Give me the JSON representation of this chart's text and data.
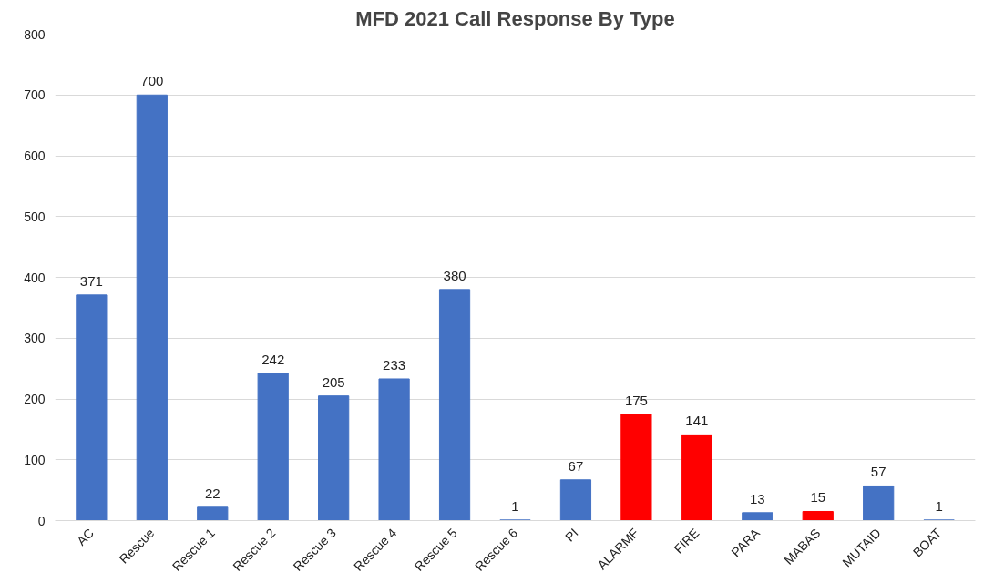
{
  "chart_data": {
    "type": "bar",
    "title": "MFD 2021 Call Response By Type",
    "categories": [
      "AC",
      "Rescue",
      "Rescue 1",
      "Rescue 2",
      "Rescue 3",
      "Rescue 4",
      "Rescue 5",
      "Rescue 6",
      "PI",
      "ALARMF",
      "FIRE",
      "PARA",
      "MABAS",
      "MUTAID",
      "BOAT"
    ],
    "values": [
      371,
      700,
      22,
      242,
      205,
      233,
      380,
      1,
      67,
      175,
      141,
      13,
      15,
      57,
      1
    ],
    "colors": [
      "#4472c4",
      "#4472c4",
      "#4472c4",
      "#4472c4",
      "#4472c4",
      "#4472c4",
      "#4472c4",
      "#4472c4",
      "#4472c4",
      "#ff0000",
      "#ff0000",
      "#4472c4",
      "#ff0000",
      "#4472c4",
      "#4472c4"
    ],
    "ylim": [
      0,
      800
    ],
    "yticks": [
      0,
      100,
      200,
      300,
      400,
      500,
      600,
      700,
      800
    ],
    "grid": "y",
    "data_labels": true
  }
}
